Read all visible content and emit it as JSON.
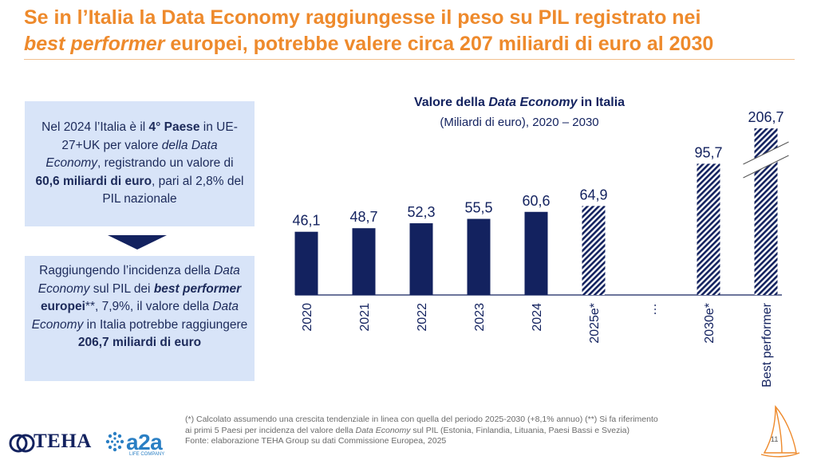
{
  "header": {
    "title_line1": "Se in l’Italia la Data Economy raggiungesse il peso su PIL registrato nei",
    "title_line2_em": "best performer",
    "title_line2_rest": " europei, potrebbe valere circa 207 miliardi di euro al 2030"
  },
  "info_top": {
    "t1": "Nel 2024 l’Italia è il ",
    "b1": "4° Paese",
    "t2": " in UE-27+UK per valore ",
    "i1": "della Data Economy",
    "t3": ", registrando un valore di ",
    "b2": "60,6 miliardi di euro",
    "t4": ", pari al 2,8% del PIL nazionale"
  },
  "info_bottom": {
    "t1": "Raggiungendo l’incidenza della ",
    "i1": "Data Economy",
    "t2": " sul PIL dei ",
    "bi1": "best performer",
    "b1": " europei",
    "t3": "**, 7,9%, il valore della ",
    "i2": "Data Economy",
    "t4": " in Italia potrebbe raggiungere ",
    "b2": "206,7 miliardi di euro"
  },
  "chart_data": {
    "type": "bar",
    "title_pre": "Valore della ",
    "title_em": "Data Economy",
    "title_post": " in Italia",
    "subtitle": "(Miliardi di euro), 2020 – 2030",
    "categories": [
      "2020",
      "2021",
      "2022",
      "2023",
      "2024",
      "2025e*",
      "…",
      "2030e*",
      "Best performer"
    ],
    "values": [
      46.1,
      48.7,
      52.3,
      55.5,
      60.6,
      64.9,
      null,
      95.7,
      206.7
    ],
    "value_labels": [
      "46,1",
      "48,7",
      "52,3",
      "55,5",
      "60,6",
      "64,9",
      "",
      "95,7",
      "206,7"
    ],
    "styles": [
      "solid",
      "solid",
      "solid",
      "solid",
      "solid",
      "hatched",
      "gap",
      "hatched",
      "hatched-broken"
    ],
    "ellipsis_label": "…",
    "colors": {
      "bar": "#13225f",
      "hatch_bg": "#ffffff",
      "axis": "#13225f"
    }
  },
  "footnote": {
    "line1": "(*) Calcolato assumendo una crescita tendenziale in linea con quella del periodo 2025-2030 (+8,1% annuo) (**) Si fa riferimento",
    "line2_a": "ai primi 5 Paesi per incidenza del valore della ",
    "line2_em": "Data Economy",
    "line2_b": " sul PIL (Estonia, Finlandia, Lituania, Paesi Bassi e Svezia)",
    "line3": "Fonte: elaborazione TEHA Group su dati Commissione Europea, 2025"
  },
  "logos": {
    "teha": "TEHA",
    "a2a": "a2a",
    "a2a_sub": "LIFE COMPANY"
  },
  "page_number": "11",
  "colors": {
    "accent": "#ee8a2c",
    "navy": "#13225f",
    "box": "#d8e4f8"
  }
}
